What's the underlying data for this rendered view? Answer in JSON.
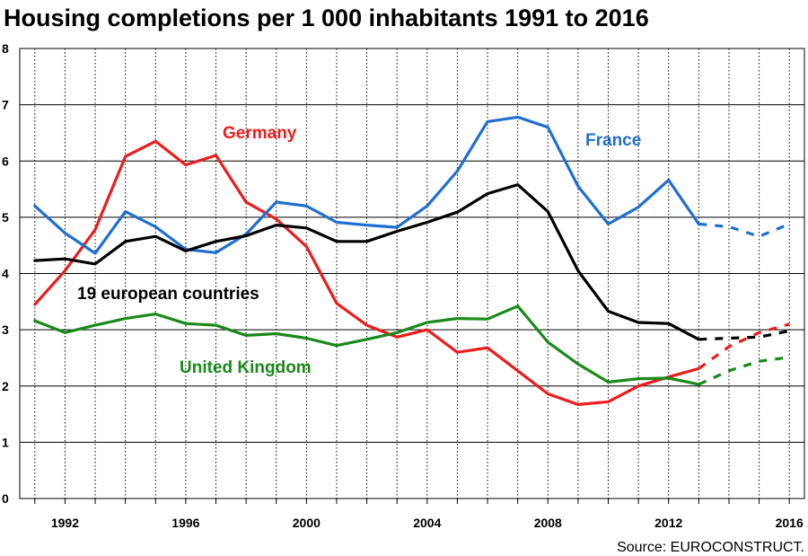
{
  "chart_data": {
    "type": "line",
    "title": "Housing completions per 1 000 inhabitants 1991 to 2016",
    "source": "Source: EUROCONSTRUCT.",
    "x_tick_labels": [
      "1992",
      "1996",
      "2000",
      "2004",
      "2008",
      "2012",
      "2016"
    ],
    "x_ticks": [
      1992,
      1996,
      2000,
      2004,
      2008,
      2012,
      2016
    ],
    "y_tick_labels": [
      "0",
      "1",
      "2",
      "3",
      "4",
      "5",
      "6",
      "7",
      "8"
    ],
    "xlim": [
      1990.5,
      2016.5
    ],
    "ylim": [
      0,
      8
    ],
    "grid": {
      "horizontal": "solid",
      "vertical": "dotted"
    },
    "forecast_style": "dashed",
    "series": [
      {
        "name": "Germany",
        "color": "#ee1c1c",
        "actual": {
          "x": [
            1991,
            1992,
            1993,
            1994,
            1995,
            1996,
            1997,
            1998,
            1999,
            2000,
            2001,
            2002,
            2003,
            2004,
            2005,
            2006,
            2007,
            2008,
            2009,
            2010,
            2011,
            2012,
            2013
          ],
          "y": [
            3.45,
            4.05,
            4.78,
            6.08,
            6.35,
            5.93,
            6.1,
            5.27,
            4.97,
            4.48,
            3.47,
            3.08,
            2.87,
            3.0,
            2.6,
            2.68,
            2.27,
            1.86,
            1.67,
            1.72,
            2.0,
            2.16,
            2.31
          ]
        },
        "forecast": {
          "x": [
            2013,
            2014,
            2015,
            2016
          ],
          "y": [
            2.31,
            2.7,
            2.95,
            3.1
          ]
        }
      },
      {
        "name": "France",
        "color": "#1f6fd1",
        "actual": {
          "x": [
            1991,
            1992,
            1993,
            1994,
            1995,
            1996,
            1997,
            1998,
            1999,
            2000,
            2001,
            2002,
            2003,
            2004,
            2005,
            2006,
            2007,
            2008,
            2009,
            2010,
            2011,
            2012,
            2013
          ],
          "y": [
            5.2,
            4.72,
            4.36,
            5.1,
            4.83,
            4.43,
            4.37,
            4.7,
            5.27,
            5.2,
            4.91,
            4.86,
            4.82,
            5.2,
            5.82,
            6.7,
            6.78,
            6.6,
            5.55,
            4.88,
            5.18,
            5.66,
            4.88
          ]
        },
        "forecast": {
          "x": [
            2013,
            2014,
            2015,
            2016
          ],
          "y": [
            4.88,
            4.83,
            4.66,
            4.88
          ]
        }
      },
      {
        "name": "19 european countries",
        "color": "#000000",
        "actual": {
          "x": [
            1991,
            1992,
            1993,
            1994,
            1995,
            1996,
            1997,
            1998,
            1999,
            2000,
            2001,
            2002,
            2003,
            2004,
            2005,
            2006,
            2007,
            2008,
            2009,
            2010,
            2011,
            2012,
            2013
          ],
          "y": [
            4.23,
            4.26,
            4.17,
            4.57,
            4.66,
            4.4,
            4.57,
            4.67,
            4.86,
            4.81,
            4.57,
            4.57,
            4.75,
            4.91,
            5.09,
            5.42,
            5.58,
            5.1,
            4.05,
            3.33,
            3.13,
            3.11,
            2.83
          ]
        },
        "forecast": {
          "x": [
            2013,
            2014,
            2015,
            2016
          ],
          "y": [
            2.83,
            2.85,
            2.87,
            2.98
          ]
        }
      },
      {
        "name": "United Kingdom",
        "color": "#1a8a1a",
        "actual": {
          "x": [
            1991,
            1992,
            1993,
            1994,
            1995,
            1996,
            1997,
            1998,
            1999,
            2000,
            2001,
            2002,
            2003,
            2004,
            2005,
            2006,
            2007,
            2008,
            2009,
            2010,
            2011,
            2012,
            2013
          ],
          "y": [
            3.16,
            2.95,
            3.08,
            3.2,
            3.28,
            3.11,
            3.08,
            2.9,
            2.93,
            2.85,
            2.72,
            2.83,
            2.95,
            3.13,
            3.2,
            3.19,
            3.42,
            2.78,
            2.39,
            2.07,
            2.13,
            2.14,
            2.03
          ]
        },
        "forecast": {
          "x": [
            2013,
            2014,
            2015,
            2016
          ],
          "y": [
            2.03,
            2.27,
            2.44,
            2.51
          ]
        }
      }
    ]
  }
}
